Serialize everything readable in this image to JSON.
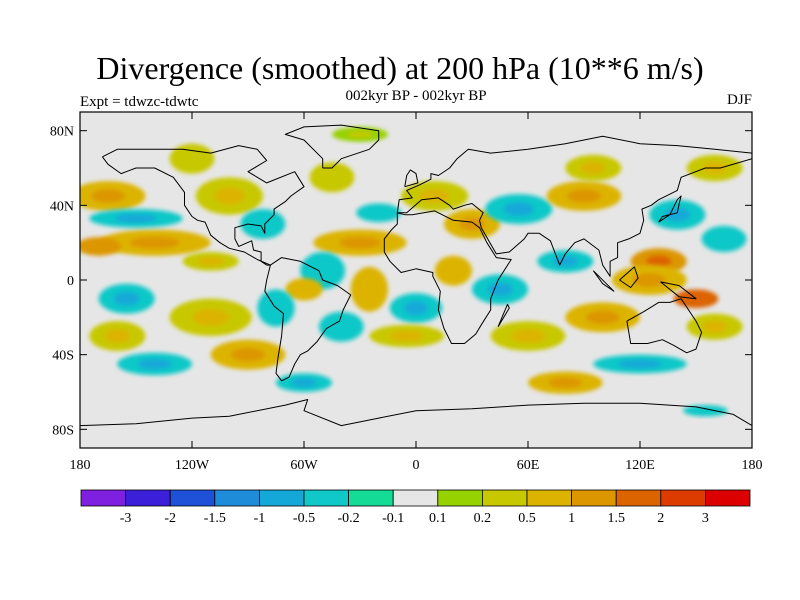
{
  "header": {
    "title": "Divergence (smoothed) at 200 hPa (10**6 m/s)",
    "subtitle": "002kyr BP - 002kyr BP",
    "left_label": "Expt = tdwzc-tdwtc",
    "season": "DJF"
  },
  "map": {
    "projection": "cylindrical equidistant",
    "lon_range": [
      -180,
      180
    ],
    "lat_range": [
      -90,
      90
    ],
    "background_color": "#e6e6e6"
  },
  "axes": {
    "lat_ticks": [
      {
        "lat": 80,
        "label": "80N"
      },
      {
        "lat": 40,
        "label": "40N"
      },
      {
        "lat": 0,
        "label": "0"
      },
      {
        "lat": -40,
        "label": "40S"
      },
      {
        "lat": -80,
        "label": "80S"
      }
    ],
    "lon_ticks": [
      {
        "lon": -180,
        "label": "180"
      },
      {
        "lon": -120,
        "label": "120W"
      },
      {
        "lon": -60,
        "label": "60W"
      },
      {
        "lon": 0,
        "label": "0"
      },
      {
        "lon": 60,
        "label": "60E"
      },
      {
        "lon": 120,
        "label": "120E"
      },
      {
        "lon": 180,
        "label": "180"
      }
    ]
  },
  "legend": {
    "colors": [
      "#7f1fdf",
      "#3c1fd8",
      "#1e50d8",
      "#1e8cd8",
      "#14a8d8",
      "#10c8c8",
      "#14dc96",
      "#e6e6e6",
      "#96d200",
      "#c8c800",
      "#dcb400",
      "#dc9600",
      "#dc6400",
      "#dc3c00",
      "#dc0000"
    ],
    "labels": [
      "-3",
      "-2",
      "-1.5",
      "-1",
      "-0.5",
      "-0.2",
      "-0.1",
      "0.1",
      "0.2",
      "0.5",
      "1",
      "1.5",
      "2",
      "3"
    ]
  },
  "field_blobs": [
    {
      "lon": -165,
      "lat": 45,
      "rx": 20,
      "ry": 8,
      "level": 10
    },
    {
      "lon": -140,
      "lat": 20,
      "rx": 30,
      "ry": 7,
      "level": 10
    },
    {
      "lon": -170,
      "lat": 18,
      "rx": 12,
      "ry": 5,
      "level": 11
    },
    {
      "lon": -110,
      "lat": 10,
      "rx": 15,
      "ry": 5,
      "level": 9
    },
    {
      "lon": -150,
      "lat": 33,
      "rx": 25,
      "ry": 5,
      "level": 5
    },
    {
      "lon": -100,
      "lat": 45,
      "rx": 18,
      "ry": 10,
      "level": 9
    },
    {
      "lon": -82,
      "lat": 30,
      "rx": 12,
      "ry": 8,
      "level": 5
    },
    {
      "lon": -120,
      "lat": 65,
      "rx": 12,
      "ry": 8,
      "level": 9
    },
    {
      "lon": -30,
      "lat": 78,
      "rx": 15,
      "ry": 4,
      "level": 8
    },
    {
      "lon": -45,
      "lat": 55,
      "rx": 12,
      "ry": 8,
      "level": 9
    },
    {
      "lon": -30,
      "lat": 20,
      "rx": 25,
      "ry": 7,
      "level": 10
    },
    {
      "lon": -20,
      "lat": 36,
      "rx": 12,
      "ry": 5,
      "level": 5
    },
    {
      "lon": -50,
      "lat": 5,
      "rx": 12,
      "ry": 10,
      "level": 5
    },
    {
      "lon": -60,
      "lat": -5,
      "rx": 10,
      "ry": 6,
      "level": 10
    },
    {
      "lon": -25,
      "lat": -5,
      "rx": 10,
      "ry": 12,
      "level": 10
    },
    {
      "lon": -75,
      "lat": -15,
      "rx": 10,
      "ry": 10,
      "level": 5
    },
    {
      "lon": -40,
      "lat": -25,
      "rx": 12,
      "ry": 8,
      "level": 5
    },
    {
      "lon": 0,
      "lat": -15,
      "rx": 14,
      "ry": 8,
      "level": 5
    },
    {
      "lon": -5,
      "lat": -30,
      "rx": 20,
      "ry": 6,
      "level": 9
    },
    {
      "lon": -110,
      "lat": -20,
      "rx": 22,
      "ry": 10,
      "level": 9
    },
    {
      "lon": -155,
      "lat": -10,
      "rx": 15,
      "ry": 8,
      "level": 5
    },
    {
      "lon": -160,
      "lat": -30,
      "rx": 15,
      "ry": 8,
      "level": 9
    },
    {
      "lon": -140,
      "lat": -45,
      "rx": 20,
      "ry": 6,
      "level": 5
    },
    {
      "lon": -90,
      "lat": -40,
      "rx": 20,
      "ry": 8,
      "level": 10
    },
    {
      "lon": -60,
      "lat": -55,
      "rx": 15,
      "ry": 5,
      "level": 5
    },
    {
      "lon": 10,
      "lat": 45,
      "rx": 18,
      "ry": 8,
      "level": 9
    },
    {
      "lon": 30,
      "lat": 30,
      "rx": 15,
      "ry": 8,
      "level": 10
    },
    {
      "lon": 55,
      "lat": 38,
      "rx": 18,
      "ry": 8,
      "level": 5
    },
    {
      "lon": 90,
      "lat": 45,
      "rx": 20,
      "ry": 8,
      "level": 10
    },
    {
      "lon": 140,
      "lat": 35,
      "rx": 15,
      "ry": 8,
      "level": 5
    },
    {
      "lon": 165,
      "lat": 22,
      "rx": 12,
      "ry": 7,
      "level": 5
    },
    {
      "lon": 130,
      "lat": 10,
      "rx": 15,
      "ry": 7,
      "level": 11
    },
    {
      "lon": 125,
      "lat": 0,
      "rx": 20,
      "ry": 8,
      "level": 10
    },
    {
      "lon": 80,
      "lat": 10,
      "rx": 15,
      "ry": 6,
      "level": 5
    },
    {
      "lon": 45,
      "lat": -5,
      "rx": 15,
      "ry": 8,
      "level": 5
    },
    {
      "lon": 20,
      "lat": 5,
      "rx": 10,
      "ry": 8,
      "level": 10
    },
    {
      "lon": 60,
      "lat": -30,
      "rx": 20,
      "ry": 8,
      "level": 9
    },
    {
      "lon": 100,
      "lat": -20,
      "rx": 20,
      "ry": 8,
      "level": 10
    },
    {
      "lon": 120,
      "lat": -45,
      "rx": 25,
      "ry": 5,
      "level": 5
    },
    {
      "lon": 160,
      "lat": -25,
      "rx": 15,
      "ry": 7,
      "level": 9
    },
    {
      "lon": 80,
      "lat": -55,
      "rx": 20,
      "ry": 6,
      "level": 10
    },
    {
      "lon": 155,
      "lat": -70,
      "rx": 12,
      "ry": 3,
      "level": 5
    },
    {
      "lon": 95,
      "lat": 60,
      "rx": 15,
      "ry": 7,
      "level": 9
    },
    {
      "lon": 160,
      "lat": 60,
      "rx": 15,
      "ry": 7,
      "level": 9
    },
    {
      "lon": 150,
      "lat": -10,
      "rx": 12,
      "ry": 5,
      "level": 12
    }
  ],
  "coastlines": [
    [
      [
        -168,
        66
      ],
      [
        -160,
        70
      ],
      [
        -140,
        70
      ],
      [
        -125,
        70
      ],
      [
        -110,
        68
      ],
      [
        -95,
        72
      ],
      [
        -85,
        70
      ],
      [
        -80,
        64
      ],
      [
        -90,
        58
      ],
      [
        -80,
        52
      ],
      [
        -65,
        58
      ],
      [
        -60,
        50
      ],
      [
        -67,
        45
      ],
      [
        -70,
        42
      ],
      [
        -76,
        38
      ],
      [
        -76,
        35
      ],
      [
        -81,
        30
      ],
      [
        -81,
        25
      ],
      [
        -83,
        29
      ],
      [
        -90,
        30
      ],
      [
        -97,
        28
      ],
      [
        -97,
        22
      ],
      [
        -95,
        18
      ],
      [
        -88,
        21
      ],
      [
        -87,
        16
      ],
      [
        -83,
        15
      ],
      [
        -83,
        10
      ],
      [
        -80,
        8
      ],
      [
        -78,
        8
      ],
      [
        -85,
        11
      ],
      [
        -92,
        15
      ],
      [
        -100,
        17
      ],
      [
        -105,
        20
      ],
      [
        -110,
        24
      ],
      [
        -113,
        31
      ],
      [
        -117,
        32
      ],
      [
        -120,
        34
      ],
      [
        -124,
        40
      ],
      [
        -124,
        47
      ],
      [
        -130,
        55
      ],
      [
        -140,
        60
      ],
      [
        -150,
        60
      ],
      [
        -158,
        57
      ],
      [
        -165,
        62
      ],
      [
        -168,
        66
      ]
    ],
    [
      [
        -78,
        8
      ],
      [
        -72,
        12
      ],
      [
        -62,
        10
      ],
      [
        -52,
        5
      ],
      [
        -50,
        0
      ],
      [
        -42,
        -3
      ],
      [
        -35,
        -8
      ],
      [
        -39,
        -16
      ],
      [
        -41,
        -22
      ],
      [
        -48,
        -26
      ],
      [
        -53,
        -33
      ],
      [
        -58,
        -38
      ],
      [
        -62,
        -40
      ],
      [
        -65,
        -45
      ],
      [
        -68,
        -52
      ],
      [
        -72,
        -54
      ],
      [
        -75,
        -50
      ],
      [
        -74,
        -42
      ],
      [
        -72,
        -30
      ],
      [
        -71,
        -18
      ],
      [
        -76,
        -14
      ],
      [
        -81,
        -6
      ],
      [
        -80,
        0
      ],
      [
        -78,
        8
      ]
    ],
    [
      [
        -10,
        36
      ],
      [
        -6,
        35
      ],
      [
        -2,
        35
      ],
      [
        10,
        37
      ],
      [
        20,
        32
      ],
      [
        30,
        31
      ],
      [
        34,
        28
      ],
      [
        38,
        20
      ],
      [
        43,
        12
      ],
      [
        51,
        11
      ],
      [
        44,
        0
      ],
      [
        40,
        -10
      ],
      [
        40,
        -16
      ],
      [
        35,
        -24
      ],
      [
        32,
        -29
      ],
      [
        26,
        -34
      ],
      [
        19,
        -34
      ],
      [
        15,
        -26
      ],
      [
        12,
        -16
      ],
      [
        13,
        -6
      ],
      [
        9,
        2
      ],
      [
        9,
        4
      ],
      [
        0,
        6
      ],
      [
        -8,
        4
      ],
      [
        -14,
        10
      ],
      [
        -17,
        15
      ],
      [
        -17,
        22
      ],
      [
        -13,
        27
      ],
      [
        -10,
        30
      ],
      [
        -10,
        36
      ]
    ],
    [
      [
        -10,
        36
      ],
      [
        -9,
        43
      ],
      [
        -2,
        44
      ],
      [
        -5,
        48
      ],
      [
        2,
        51
      ],
      [
        8,
        54
      ],
      [
        8,
        57
      ],
      [
        12,
        56
      ],
      [
        18,
        60
      ],
      [
        22,
        65
      ],
      [
        28,
        70
      ],
      [
        40,
        68
      ],
      [
        60,
        70
      ],
      [
        80,
        73
      ],
      [
        100,
        77
      ],
      [
        120,
        73
      ],
      [
        140,
        72
      ],
      [
        160,
        70
      ],
      [
        180,
        68
      ]
    ],
    [
      [
        -10,
        36
      ],
      [
        -5,
        36
      ],
      [
        3,
        43
      ],
      [
        12,
        44
      ],
      [
        18,
        40
      ],
      [
        20,
        38
      ],
      [
        26,
        40
      ],
      [
        30,
        41
      ],
      [
        36,
        36
      ],
      [
        34,
        32
      ],
      [
        35,
        28
      ],
      [
        43,
        14
      ],
      [
        50,
        15
      ],
      [
        58,
        22
      ],
      [
        60,
        25
      ],
      [
        66,
        25
      ],
      [
        72,
        21
      ],
      [
        77,
        8
      ],
      [
        80,
        14
      ],
      [
        85,
        20
      ],
      [
        90,
        22
      ],
      [
        98,
        16
      ],
      [
        100,
        8
      ],
      [
        104,
        2
      ],
      [
        104,
        10
      ],
      [
        108,
        12
      ],
      [
        108,
        20
      ],
      [
        114,
        22
      ],
      [
        120,
        25
      ],
      [
        122,
        32
      ],
      [
        121,
        38
      ],
      [
        126,
        40
      ],
      [
        130,
        43
      ],
      [
        140,
        48
      ],
      [
        142,
        55
      ],
      [
        155,
        60
      ],
      [
        163,
        60
      ],
      [
        180,
        65
      ]
    ],
    [
      [
        113,
        -22
      ],
      [
        115,
        -34
      ],
      [
        124,
        -34
      ],
      [
        132,
        -32
      ],
      [
        138,
        -35
      ],
      [
        145,
        -39
      ],
      [
        150,
        -37
      ],
      [
        153,
        -28
      ],
      [
        150,
        -22
      ],
      [
        142,
        -10
      ],
      [
        136,
        -12
      ],
      [
        130,
        -12
      ],
      [
        122,
        -17
      ],
      [
        113,
        -22
      ]
    ],
    [
      [
        -180,
        -78
      ],
      [
        -150,
        -77
      ],
      [
        -120,
        -74
      ],
      [
        -100,
        -73
      ],
      [
        -70,
        -67
      ],
      [
        -58,
        -64
      ],
      [
        -60,
        -70
      ],
      [
        -40,
        -78
      ],
      [
        -20,
        -74
      ],
      [
        0,
        -70
      ],
      [
        30,
        -69
      ],
      [
        60,
        -67
      ],
      [
        90,
        -66
      ],
      [
        120,
        -66
      ],
      [
        150,
        -68
      ],
      [
        170,
        -72
      ],
      [
        180,
        -78
      ]
    ],
    [
      [
        -50,
        60
      ],
      [
        -45,
        60
      ],
      [
        -40,
        65
      ],
      [
        -25,
        70
      ],
      [
        -20,
        75
      ],
      [
        -20,
        80
      ],
      [
        -40,
        83
      ],
      [
        -60,
        82
      ],
      [
        -70,
        78
      ],
      [
        -60,
        75
      ],
      [
        -55,
        70
      ],
      [
        -50,
        65
      ],
      [
        -50,
        60
      ]
    ],
    [
      [
        -6,
        50
      ],
      [
        -5,
        56
      ],
      [
        -3,
        59
      ],
      [
        0,
        57
      ],
      [
        1,
        52
      ],
      [
        -6,
        50
      ]
    ],
    [
      [
        130,
        31
      ],
      [
        132,
        34
      ],
      [
        140,
        36
      ],
      [
        141,
        41
      ],
      [
        142,
        45
      ],
      [
        140,
        43
      ],
      [
        136,
        35
      ],
      [
        130,
        31
      ]
    ],
    [
      [
        95,
        5
      ],
      [
        106,
        -6
      ],
      [
        100,
        -2
      ],
      [
        95,
        5
      ]
    ],
    [
      [
        109,
        0
      ],
      [
        117,
        7
      ],
      [
        119,
        1
      ],
      [
        115,
        -4
      ],
      [
        109,
        0
      ]
    ],
    [
      [
        131,
        -1
      ],
      [
        141,
        -3
      ],
      [
        150,
        -10
      ],
      [
        141,
        -9
      ],
      [
        131,
        -1
      ]
    ],
    [
      [
        44,
        -25
      ],
      [
        50,
        -15
      ],
      [
        49,
        -13
      ],
      [
        44,
        -25
      ]
    ]
  ]
}
